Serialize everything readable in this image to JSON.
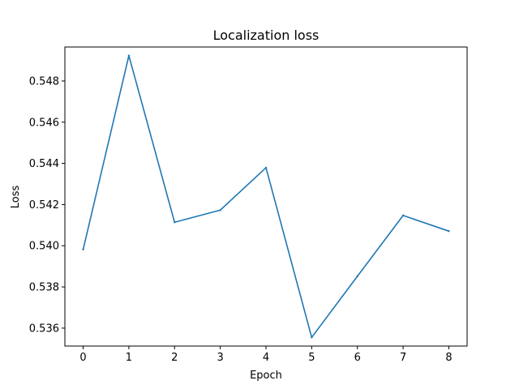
{
  "chart_data": {
    "type": "line",
    "title": "Localization loss",
    "xlabel": "Epoch",
    "ylabel": "Loss",
    "x": [
      0,
      1,
      2,
      3,
      4,
      5,
      6,
      7,
      8
    ],
    "series": [
      {
        "values": [
          0.53982,
          0.54923,
          0.54114,
          0.54173,
          0.54379,
          0.53555,
          0.53852,
          0.54147,
          0.54071
        ],
        "color": "#1f77b4"
      }
    ],
    "xticks": [
      "0",
      "1",
      "2",
      "3",
      "4",
      "5",
      "6",
      "7",
      "8"
    ],
    "yticks": [
      "0.536",
      "0.538",
      "0.540",
      "0.542",
      "0.544",
      "0.546",
      "0.548"
    ],
    "xlim": [
      -0.4,
      8.4
    ],
    "ylim": [
      0.53513,
      0.54965
    ],
    "grid": false
  }
}
